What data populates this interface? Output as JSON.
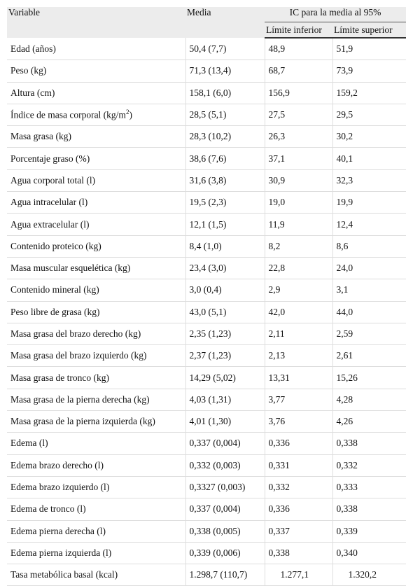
{
  "table": {
    "header": {
      "variable": "Variable",
      "media": "Media",
      "ic": "IC para la media al 95%",
      "lower": "Límite inferior",
      "upper": "Límite superior"
    },
    "rows": [
      [
        "Edad (años)",
        "50,4 (7,7)",
        "48,9",
        "51,9"
      ],
      [
        "Peso (kg)",
        "71,3 (13,4)",
        "68,7",
        "73,9"
      ],
      [
        "Altura (cm)",
        "158,1 (6,0)",
        "156,9",
        "159,2"
      ],
      [
        {
          "text": "Índice de masa corporal (kg/m",
          "sup": "2",
          "end": ")"
        },
        "28,5 (5,1)",
        "27,5",
        "29,5"
      ],
      [
        "Masa grasa (kg)",
        "28,3 (10,2)",
        "26,3",
        "30,2"
      ],
      [
        "Porcentaje graso (%)",
        "38,6 (7,6)",
        "37,1",
        "40,1"
      ],
      [
        "Agua corporal total (l)",
        "31,6 (3,8)",
        "30,9",
        "32,3"
      ],
      [
        "Agua intracelular (l)",
        "19,5 (2,3)",
        "19,0",
        "19,9"
      ],
      [
        "Agua extracelular (l)",
        "12,1 (1,5)",
        "11,9",
        "12,4"
      ],
      [
        "Contenido proteico (kg)",
        "8,4 (1,0)",
        "8,2",
        "8,6"
      ],
      [
        "Masa muscular esquelética (kg)",
        "23,4 (3,0)",
        "22,8",
        "24,0"
      ],
      [
        "Contenido mineral (kg)",
        "3,0 (0,4)",
        "2,9",
        "3,1"
      ],
      [
        "Peso libre de grasa (kg)",
        "43,0 (5,1)",
        "42,0",
        "44,0"
      ],
      [
        "Masa grasa del brazo derecho (kg)",
        "2,35 (1,23)",
        "2,11",
        "2,59"
      ],
      [
        "Masa grasa del brazo izquierdo (kg)",
        "2,37 (1,23)",
        "2,13",
        "2,61"
      ],
      [
        "Masa grasa de tronco (kg)",
        "14,29 (5,02)",
        "13,31",
        "15,26"
      ],
      [
        "Masa grasa de la pierna derecha (kg)",
        "4,03 (1,31)",
        "3,77",
        "4,28"
      ],
      [
        "Masa grasa de la pierna izquierda (kg)",
        "4,01 (1,30)",
        "3,76",
        "4,26"
      ],
      [
        "Edema (l)",
        "0,337 (0,004)",
        "0,336",
        "0,338"
      ],
      [
        "Edema brazo derecho (l)",
        "0,332 (0,003)",
        "0,331",
        "0,332"
      ],
      [
        "Edema brazo izquierdo (l)",
        "0,3327 (0,003)",
        "0,332",
        "0,333"
      ],
      [
        "Edema de tronco (l)",
        "0,337 (0,004)",
        "0,336",
        "0,338"
      ],
      [
        "Edema pierna derecha (l)",
        "0,338 (0,005)",
        "0,337",
        "0,339"
      ],
      [
        "Edema pierna izquierda (l)",
        "0,339 (0,006)",
        "0,338",
        "0,340"
      ],
      [
        "Tasa metabólica basal (kcal)",
        "1.298,7 (110,7)",
        "1.277,1",
        "1.320,2"
      ]
    ]
  }
}
